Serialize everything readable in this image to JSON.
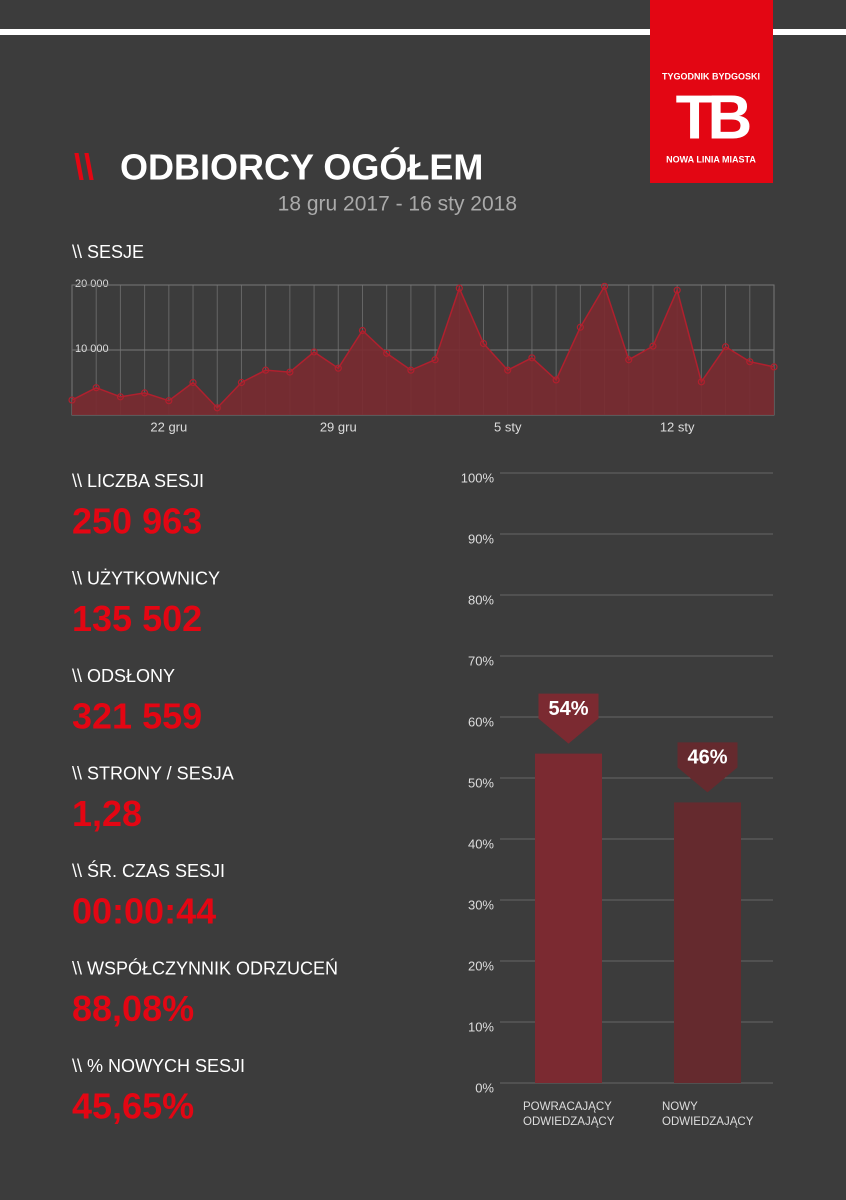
{
  "logo": {
    "top": "TYGODNIK BYDGOSKI",
    "mark": "TB",
    "bottom": "NOWA LINIA MIASTA"
  },
  "header": {
    "prefix": "\\\\",
    "title": "ODBIORCY OGÓŁEM",
    "date_range": "18 gru 2017 - 16 sty 2018"
  },
  "stats": [
    {
      "label": "\\\\ LICZBA SESJI",
      "value": "250 963"
    },
    {
      "label": "\\\\ UŻYTKOWNICY",
      "value": "135 502"
    },
    {
      "label": "\\\\ ODSŁONY",
      "value": "321 559"
    },
    {
      "label": "\\\\ STRONY / SESJA",
      "value": "1,28"
    },
    {
      "label": "\\\\ ŚR. CZAS SESJI",
      "value": "00:00:44"
    },
    {
      "label": "\\\\ WSPÓŁCZYNNIK ODRZUCEŃ",
      "value": "88,08%"
    },
    {
      "label": "\\\\ % NOWYCH SESJI",
      "value": "45,65%"
    }
  ],
  "chart_data": [
    {
      "type": "area",
      "title": "\\\\ SESJE",
      "categories": [
        null,
        null,
        null,
        null,
        "22 gru",
        null,
        null,
        null,
        null,
        null,
        null,
        "29 gru",
        null,
        null,
        null,
        null,
        null,
        null,
        "5 sty",
        null,
        null,
        null,
        null,
        null,
        null,
        "12 sty",
        null,
        null,
        null,
        null
      ],
      "values": [
        2300,
        4200,
        2800,
        3400,
        2200,
        5000,
        1100,
        5000,
        6900,
        6600,
        9700,
        7200,
        13000,
        9500,
        6900,
        8500,
        19500,
        11000,
        6900,
        8800,
        5400,
        13500,
        19800,
        8500,
        10600,
        19200,
        5100,
        10500,
        8200,
        7400
      ],
      "color": "#b0202e",
      "fill": "#7a2a30",
      "ylim": [
        0,
        20000
      ],
      "yticks": [
        {
          "value": 10000,
          "label": "10 000"
        },
        {
          "value": 20000,
          "label": "20 000"
        }
      ],
      "grid": true
    },
    {
      "type": "bar",
      "categories": [
        [
          "POWRACAJĄCY",
          "ODWIEDZAJĄCY"
        ],
        [
          "NOWY",
          "ODWIEDZAJĄCY"
        ]
      ],
      "values": [
        54,
        46
      ],
      "value_labels": [
        "54%",
        "46%"
      ],
      "colors": [
        "#7b2a31",
        "#652a2e"
      ],
      "ylim": [
        0,
        100
      ],
      "yticks": [
        {
          "value": 0,
          "label": "0%"
        },
        {
          "value": 10,
          "label": "10%"
        },
        {
          "value": 20,
          "label": "20%"
        },
        {
          "value": 30,
          "label": "30%"
        },
        {
          "value": 40,
          "label": "40%"
        },
        {
          "value": 50,
          "label": "50%"
        },
        {
          "value": 60,
          "label": "60%"
        },
        {
          "value": 70,
          "label": "70%"
        },
        {
          "value": 80,
          "label": "80%"
        },
        {
          "value": 90,
          "label": "90%"
        },
        {
          "value": 100,
          "label": "100%"
        }
      ],
      "grid": true
    }
  ]
}
